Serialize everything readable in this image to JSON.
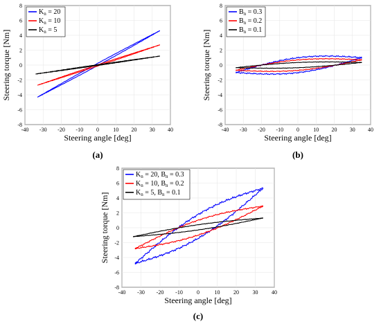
{
  "panels": [
    {
      "caption": "(a)",
      "chart_data": {
        "type": "line",
        "xlabel": "Steering angle [deg]",
        "ylabel": "Steering torque [Nm]",
        "xlim": [
          -40,
          40
        ],
        "ylim": [
          -8,
          8
        ],
        "xticks": [
          -40,
          -30,
          -20,
          -10,
          0,
          10,
          20,
          30,
          40
        ],
        "yticks": [
          -8,
          -6,
          -4,
          -2,
          0,
          2,
          4,
          6,
          8
        ],
        "grid": true,
        "legend_position": "top-left",
        "series": [
          {
            "name": [
              "K",
              "n",
              " = 20"
            ],
            "color": "#0000ff",
            "x": [
              -33,
              34
            ],
            "y": [
              -4.3,
              4.6
            ],
            "halfwidth": 0.15
          },
          {
            "name": [
              "K",
              "n",
              " = 10"
            ],
            "color": "#ff0000",
            "x": [
              -33,
              34
            ],
            "y": [
              -2.7,
              2.7
            ],
            "halfwidth": 0.08
          },
          {
            "name": [
              "K",
              "n",
              " = 5"
            ],
            "color": "#000000",
            "x": [
              -34,
              34
            ],
            "y": [
              -1.2,
              1.2
            ],
            "halfwidth": 0.05
          }
        ]
      }
    },
    {
      "caption": "(b)",
      "chart_data": {
        "type": "line",
        "xlabel": "Steering angle [deg]",
        "ylabel": "Steering torque [Nm]",
        "xlim": [
          -40,
          40
        ],
        "ylim": [
          -8,
          8
        ],
        "xticks": [
          -40,
          -30,
          -20,
          -10,
          0,
          10,
          20,
          30,
          40
        ],
        "yticks": [
          -8,
          -6,
          -4,
          -2,
          0,
          2,
          4,
          6,
          8
        ],
        "grid": true,
        "legend_position": "top-left",
        "series": [
          {
            "name": [
              "B",
              "n",
              " = 0.3"
            ],
            "color": "#0000ff",
            "x": [
              -34,
              35
            ],
            "y": [
              -1.0,
              1.0
            ],
            "halfwidth": 1.0
          },
          {
            "name": [
              "B",
              "n",
              " = 0.2"
            ],
            "color": "#ff0000",
            "x": [
              -34,
              35
            ],
            "y": [
              -0.7,
              0.7
            ],
            "halfwidth": 0.7
          },
          {
            "name": [
              "B",
              "n",
              " = 0.1"
            ],
            "color": "#000000",
            "x": [
              -34,
              35
            ],
            "y": [
              -0.35,
              0.35
            ],
            "halfwidth": 0.35
          }
        ]
      }
    },
    {
      "caption": "(c)",
      "chart_data": {
        "type": "line",
        "xlabel": "Steering angle [deg]",
        "ylabel": "Steering torque [Nm]",
        "xlim": [
          -40,
          40
        ],
        "ylim": [
          -8,
          8
        ],
        "xticks": [
          -40,
          -30,
          -20,
          -10,
          0,
          10,
          20,
          30,
          40
        ],
        "yticks": [
          -8,
          -6,
          -4,
          -2,
          0,
          2,
          4,
          6,
          8
        ],
        "grid": true,
        "legend_position": "top-left",
        "series": [
          {
            "name": [
              "K",
              "n",
              " = 20, B",
              "n",
              " = 0.3"
            ],
            "color": "#0000ff",
            "x": [
              -33,
              34
            ],
            "y": [
              -4.8,
              5.3
            ],
            "halfwidth": 1.6
          },
          {
            "name": [
              "K",
              "n",
              " = 10, B",
              "n",
              " = 0.2"
            ],
            "color": "#ff0000",
            "x": [
              -33,
              34
            ],
            "y": [
              -2.8,
              2.9
            ],
            "halfwidth": 1.0
          },
          {
            "name": [
              "K",
              "n",
              " = 5,   B",
              "n",
              " = 0.1"
            ],
            "color": "#000000",
            "x": [
              -34,
              34
            ],
            "y": [
              -1.2,
              1.3
            ],
            "halfwidth": 0.35
          }
        ]
      }
    }
  ]
}
